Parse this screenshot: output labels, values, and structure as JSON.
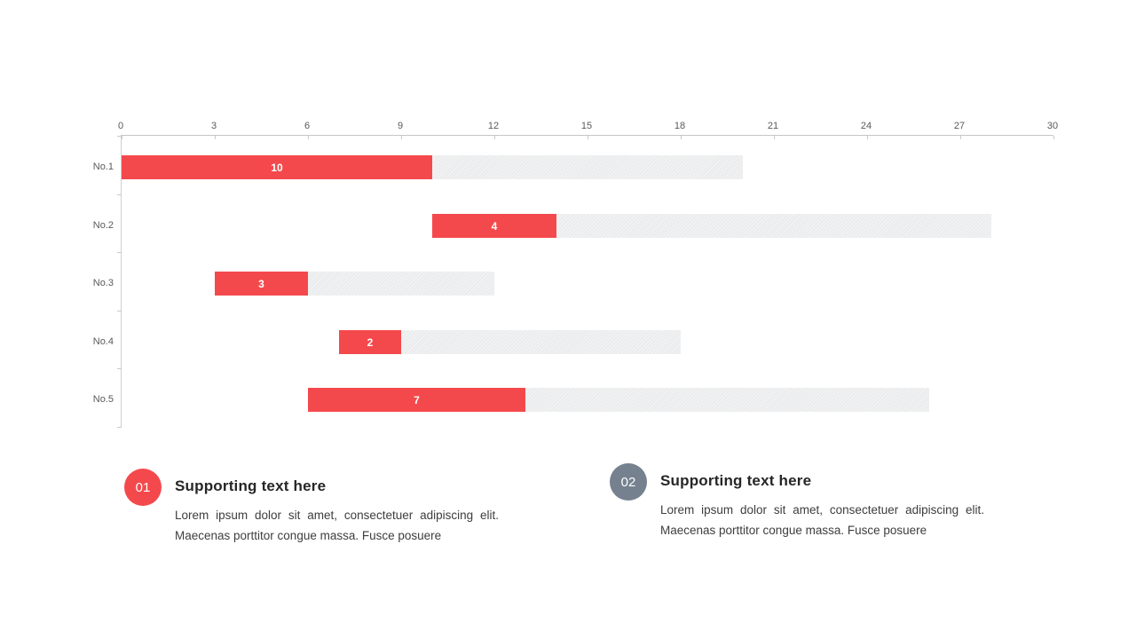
{
  "chart_data": {
    "type": "bar",
    "variant": "horizontal-gantt",
    "title": "",
    "xlabel": "",
    "ylabel": "",
    "categories": [
      "No.1",
      "No.2",
      "No.3",
      "No.4",
      "No.5"
    ],
    "starts": [
      0,
      10,
      3,
      7,
      6
    ],
    "ends": [
      20,
      28,
      12,
      18,
      26
    ],
    "series": [
      {
        "name": "highlight",
        "color": "#f4494c",
        "values": [
          10,
          4,
          3,
          2,
          7
        ]
      },
      {
        "name": "track-remainder",
        "color": "#ebeced",
        "values": [
          10,
          14,
          6,
          9,
          13
        ]
      }
    ],
    "bar_labels": [
      "10",
      "4",
      "3",
      "2",
      "7"
    ],
    "x_ticks": [
      0,
      3,
      6,
      9,
      12,
      15,
      18,
      21,
      24,
      27,
      30
    ],
    "xlim": [
      0,
      30
    ],
    "x_axis_position": "top",
    "grid": false,
    "legend": "none",
    "colors": {
      "bar_red": "#f4494c",
      "bar_gray": "#ebeced",
      "axis_line": "#c6c6c6",
      "tick_text": "#595959"
    }
  },
  "callouts": [
    {
      "number": "01",
      "badge_color": "#f4494c",
      "title": "Supporting text here",
      "body": "Lorem ipsum dolor sit amet, consectetuer adipiscing elit. Maecenas porttitor congue massa. Fusce posuere"
    },
    {
      "number": "02",
      "badge_color": "#75818f",
      "title": "Supporting text here",
      "body": "Lorem ipsum dolor sit amet, consectetuer adipiscing elit. Maecenas porttitor congue massa. Fusce posuere"
    }
  ]
}
